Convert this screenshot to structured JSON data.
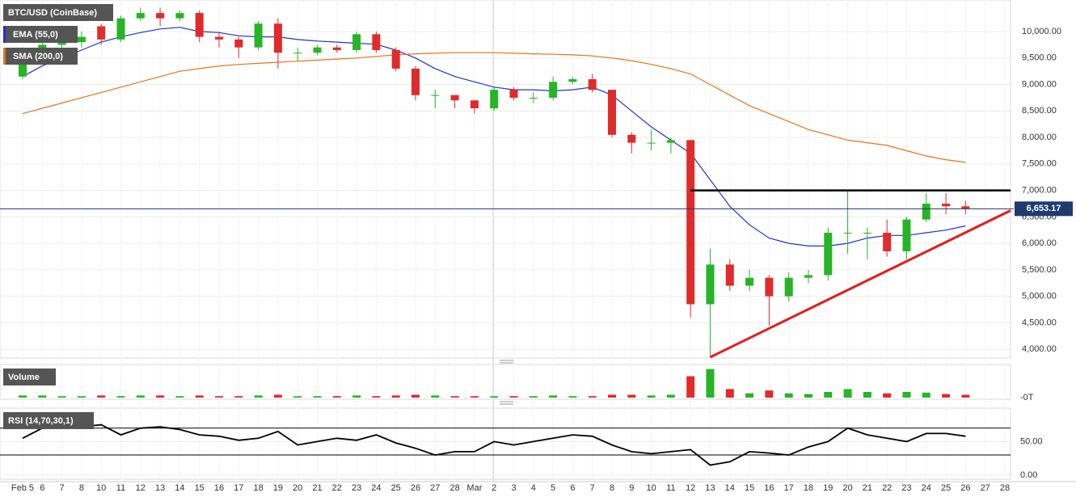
{
  "chart_data": [
    {
      "type": "candlestick",
      "title": "BTC/USD (CoinBase)",
      "categories": [
        "Feb 5",
        "6",
        "7",
        "8",
        "10",
        "11",
        "12",
        "13",
        "14",
        "15",
        "16",
        "17",
        "18",
        "19",
        "20",
        "21",
        "22",
        "23",
        "24",
        "25",
        "26",
        "27",
        "28",
        "Mar",
        "2",
        "3",
        "4",
        "5",
        "6",
        "7",
        "8",
        "9",
        "10",
        "11",
        "12",
        "13",
        "14",
        "15",
        "16",
        "17",
        "18",
        "19",
        "20",
        "21",
        "22",
        "23",
        "24",
        "25",
        "26",
        "27",
        "28"
      ],
      "open": [
        9150,
        9600,
        9750,
        9800,
        10100,
        9850,
        10250,
        10350,
        10250,
        10350,
        9900,
        9850,
        9700,
        10150,
        9600,
        9600,
        9700,
        9650,
        9950,
        9650,
        9300,
        8800,
        8800,
        8700,
        8550,
        8900,
        8750,
        8750,
        9050,
        9100,
        8900,
        8050,
        7900,
        7900,
        7950,
        4850,
        5600,
        5200,
        5350,
        5000,
        5350,
        5400,
        6200,
        6200,
        6200,
        5850,
        6450,
        6750,
        6700,
        null,
        null
      ],
      "high": [
        9700,
        9800,
        9900,
        10000,
        10150,
        10300,
        10450,
        10450,
        10400,
        10400,
        10000,
        9900,
        10200,
        10250,
        9700,
        9750,
        9750,
        10000,
        10000,
        9700,
        9350,
        8900,
        8800,
        8700,
        8950,
        8950,
        8850,
        9150,
        9150,
        9200,
        8900,
        8100,
        8150,
        8000,
        7950,
        5900,
        5700,
        5500,
        5400,
        5450,
        5500,
        6300,
        7000,
        6300,
        6450,
        6500,
        6950,
        6950,
        6800,
        null,
        null
      ],
      "low": [
        9100,
        9550,
        9700,
        9700,
        9750,
        9800,
        10200,
        10100,
        10200,
        9800,
        9700,
        9500,
        9650,
        9300,
        9450,
        9550,
        9600,
        9600,
        9600,
        9250,
        8700,
        8550,
        8550,
        8450,
        8500,
        8700,
        8650,
        8700,
        9000,
        8850,
        8000,
        7700,
        7750,
        7700,
        4600,
        3850,
        5100,
        5100,
        4450,
        4900,
        5250,
        5300,
        5800,
        5700,
        5750,
        5700,
        6400,
        6550,
        6550,
        null,
        null
      ],
      "close": [
        9600,
        9750,
        9800,
        9900,
        9850,
        10250,
        10350,
        10250,
        10350,
        9900,
        9850,
        9700,
        10150,
        9600,
        9600,
        9700,
        9650,
        9950,
        9650,
        9300,
        8800,
        8800,
        8700,
        8550,
        8900,
        8750,
        8750,
        9050,
        9100,
        8900,
        8050,
        7900,
        7900,
        7950,
        4850,
        5600,
        5200,
        5350,
        5000,
        5350,
        5400,
        6200,
        6200,
        6200,
        5850,
        6450,
        6750,
        6700,
        6650,
        null,
        null
      ],
      "up_color": "#26b526",
      "down_color": "#e02b2b",
      "series": [
        {
          "name": "EMA (55,0)",
          "color": "#2233cc",
          "values": [
            9150,
            9350,
            9500,
            9650,
            9800,
            9900,
            9980,
            10050,
            10080,
            10000,
            9980,
            9920,
            9900,
            9900,
            9850,
            9820,
            9800,
            9780,
            9760,
            9650,
            9500,
            9300,
            9150,
            9050,
            8950,
            8900,
            8900,
            8880,
            8900,
            8950,
            8800,
            8500,
            8200,
            7950,
            7700,
            7200,
            6700,
            6350,
            6100,
            6000,
            5950,
            5950,
            6000,
            6100,
            6150,
            6150,
            6200,
            6250,
            6330,
            null,
            null
          ]
        },
        {
          "name": "SMA (200,0)",
          "color": "#e8741c",
          "values": [
            8450,
            8550,
            8650,
            8750,
            8850,
            8950,
            9050,
            9150,
            9250,
            9300,
            9350,
            9380,
            9400,
            9420,
            9440,
            9460,
            9480,
            9500,
            9530,
            9560,
            9580,
            9590,
            9600,
            9600,
            9600,
            9590,
            9580,
            9570,
            9560,
            9540,
            9500,
            9450,
            9380,
            9300,
            9200,
            9000,
            8800,
            8600,
            8450,
            8300,
            8150,
            8050,
            7950,
            7900,
            7850,
            7750,
            7650,
            7580,
            7530,
            null,
            null
          ]
        }
      ],
      "ylim": [
        3850,
        10550
      ],
      "yticks": [
        {
          "value": 4000,
          "label": "4,000.00"
        },
        {
          "value": 4500,
          "label": "4,500.00"
        },
        {
          "value": 5000,
          "label": "5,000.00"
        },
        {
          "value": 5500,
          "label": "5,500.00"
        },
        {
          "value": 6000,
          "label": "6,000.00"
        },
        {
          "value": 6500,
          "label": "6,500.00"
        },
        {
          "value": 7000,
          "label": "7,000.00"
        },
        {
          "value": 7500,
          "label": "7,500.00"
        },
        {
          "value": 8000,
          "label": "8,000.00"
        },
        {
          "value": 8500,
          "label": "8,500.00"
        },
        {
          "value": 9000,
          "label": "9,000.00"
        },
        {
          "value": 9500,
          "label": "9,500.00"
        },
        {
          "value": 10000,
          "label": "10,000.00"
        }
      ],
      "last_price": {
        "value": 6653.17,
        "label": "6,653.17"
      },
      "resistance": 7000,
      "support_line": [
        3850,
        6620
      ],
      "grid": true
    },
    {
      "type": "bar",
      "title": "Volume",
      "values": [
        3,
        3,
        2,
        2,
        3,
        2,
        3,
        3,
        2,
        3,
        2,
        2,
        3,
        4,
        2,
        2,
        2,
        3,
        2,
        3,
        4,
        3,
        2,
        2,
        2,
        2,
        2,
        3,
        2,
        2,
        4,
        4,
        3,
        4,
        30,
        40,
        12,
        6,
        10,
        6,
        5,
        8,
        12,
        8,
        6,
        8,
        7,
        5,
        4,
        null,
        null
      ],
      "ylim": [
        0,
        42
      ],
      "yticks": [
        {
          "value": 0,
          "label": "-0T"
        }
      ]
    },
    {
      "type": "line",
      "title": "RSI (14,70,30,1)",
      "color": "#000000",
      "values": [
        55,
        70,
        75,
        72,
        75,
        60,
        70,
        72,
        68,
        60,
        58,
        52,
        55,
        65,
        45,
        50,
        55,
        52,
        60,
        48,
        40,
        30,
        35,
        35,
        50,
        45,
        50,
        55,
        60,
        58,
        45,
        35,
        32,
        35,
        38,
        15,
        20,
        35,
        33,
        30,
        42,
        50,
        70,
        60,
        55,
        50,
        62,
        62,
        58,
        null,
        null
      ],
      "ylim": [
        0,
        95
      ],
      "yticks": [
        {
          "value": 0,
          "label": "0.00"
        },
        {
          "value": 50,
          "label": "50.00"
        }
      ],
      "levels": [
        30,
        70
      ]
    }
  ]
}
